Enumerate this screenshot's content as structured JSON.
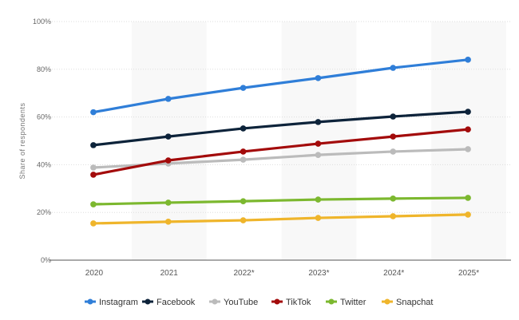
{
  "chart_data": {
    "type": "line",
    "title": "",
    "xlabel": "",
    "ylabel": "Share of respondents",
    "categories": [
      "2020",
      "2021",
      "2022*",
      "2023*",
      "2024*",
      "2025*"
    ],
    "ylim": [
      0,
      100
    ],
    "yticks": [
      "0%",
      "20%",
      "40%",
      "60%",
      "80%",
      "100%"
    ],
    "grid": true,
    "legend_position": "bottom",
    "series": [
      {
        "name": "Instagram",
        "color": "#2f7ed8",
        "values": [
          62,
          67.6,
          72.2,
          76.3,
          80.6,
          84
        ]
      },
      {
        "name": "Facebook",
        "color": "#0d233a",
        "values": [
          48.2,
          51.8,
          55.2,
          57.9,
          60.2,
          62.2
        ]
      },
      {
        "name": "YouTube",
        "color": "#bbbbbb",
        "values": [
          38.8,
          40.5,
          42.1,
          44.1,
          45.5,
          46.5
        ]
      },
      {
        "name": "TikTok",
        "color": "#a30b0b",
        "values": [
          35.8,
          41.8,
          45.5,
          48.8,
          51.8,
          54.8
        ]
      },
      {
        "name": "Twitter",
        "color": "#7cb82f",
        "values": [
          23.4,
          24.1,
          24.7,
          25.4,
          25.8,
          26.1
        ]
      },
      {
        "name": "Snapchat",
        "color": "#efb52b",
        "values": [
          15.4,
          16.1,
          16.7,
          17.7,
          18.4,
          19.1
        ]
      }
    ]
  }
}
